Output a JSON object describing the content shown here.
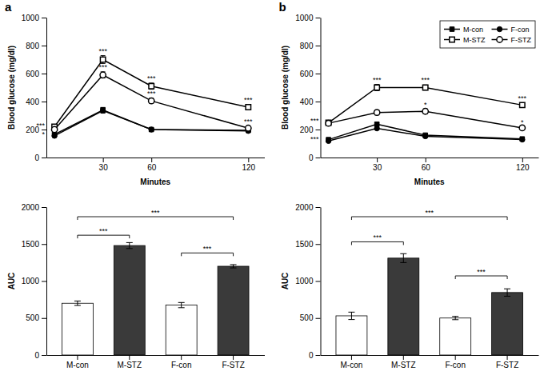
{
  "chart_data": [
    {
      "type": "line",
      "title": "a",
      "x_label": "Minutes",
      "y_label": "Blood glucose (mg/dl)",
      "x": [
        0,
        30,
        60,
        120
      ],
      "xlim": [
        -5,
        130
      ],
      "xticks": [
        30,
        60,
        120
      ],
      "ylim": [
        0,
        1000
      ],
      "yticks": [
        0,
        200,
        400,
        600,
        800,
        1000
      ],
      "series": [
        {
          "name": "M-con",
          "color": "#000000",
          "marker": "square",
          "values": [
            165,
            340,
            200,
            195
          ],
          "errors": [
            8,
            18,
            10,
            10
          ]
        },
        {
          "name": "M-STZ",
          "color": "#000000",
          "marker": "square-open",
          "values": [
            220,
            700,
            510,
            360
          ],
          "errors": [
            15,
            28,
            22,
            20
          ]
        },
        {
          "name": "F-con",
          "color": "#000000",
          "marker": "circle",
          "values": [
            155,
            335,
            200,
            190
          ],
          "errors": [
            8,
            18,
            10,
            8
          ]
        },
        {
          "name": "F-STZ",
          "color": "#000000",
          "marker": "circle-open",
          "values": [
            200,
            590,
            405,
            210
          ],
          "errors": [
            12,
            22,
            18,
            12
          ]
        }
      ],
      "annotations": [
        {
          "text": "***",
          "x": -6,
          "y": 230
        },
        {
          "text": "*",
          "x": -6,
          "y": 168
        },
        {
          "text": "***",
          "x": 30,
          "y": 742
        },
        {
          "text": "***",
          "x": 30,
          "y": 630
        },
        {
          "text": "***",
          "x": 60,
          "y": 548
        },
        {
          "text": "***",
          "x": 60,
          "y": 438
        },
        {
          "text": "***",
          "x": 120,
          "y": 392
        },
        {
          "text": "***",
          "x": 120,
          "y": 242
        }
      ]
    },
    {
      "type": "line",
      "title": "b",
      "x_label": "Minutes",
      "y_label": "Blood glucose (mg/dl)",
      "x": [
        0,
        30,
        60,
        120
      ],
      "xlim": [
        -5,
        130
      ],
      "xticks": [
        30,
        60,
        120
      ],
      "ylim": [
        0,
        1000
      ],
      "yticks": [
        0,
        200,
        400,
        600,
        800,
        1000
      ],
      "legend": "upper right",
      "series": [
        {
          "name": "M-con",
          "color": "#000000",
          "marker": "square",
          "values": [
            128,
            238,
            160,
            133
          ],
          "errors": [
            7,
            13,
            9,
            7
          ]
        },
        {
          "name": "M-STZ",
          "color": "#000000",
          "marker": "square-open",
          "values": [
            248,
            500,
            500,
            375
          ],
          "errors": [
            13,
            22,
            18,
            13
          ]
        },
        {
          "name": "F-con",
          "color": "#000000",
          "marker": "circle",
          "values": [
            118,
            208,
            152,
            128
          ],
          "errors": [
            7,
            10,
            7,
            7
          ]
        },
        {
          "name": "F-STZ",
          "color": "#000000",
          "marker": "circle-open",
          "values": [
            245,
            322,
            330,
            212
          ],
          "errors": [
            13,
            18,
            18,
            10
          ]
        }
      ],
      "annotations": [
        {
          "text": "***",
          "x": -6,
          "y": 262
        },
        {
          "text": "***",
          "x": -6,
          "y": 132
        },
        {
          "text": "***",
          "x": 30,
          "y": 535
        },
        {
          "text": "***",
          "x": 60,
          "y": 535
        },
        {
          "text": "*",
          "x": 60,
          "y": 358
        },
        {
          "text": "***",
          "x": 120,
          "y": 405
        },
        {
          "text": "*",
          "x": 120,
          "y": 236
        }
      ]
    },
    {
      "type": "bar",
      "y_label": "AUC",
      "categories": [
        "M-con",
        "M-STZ",
        "F-con",
        "F-STZ"
      ],
      "values": [
        700,
        1480,
        675,
        1200
      ],
      "errors": [
        30,
        40,
        35,
        22
      ],
      "colors": [
        "#ffffff",
        "#3a3a3a",
        "#ffffff",
        "#3a3a3a"
      ],
      "ylim": [
        0,
        2000
      ],
      "yticks": [
        0,
        500,
        1000,
        1500,
        2000
      ],
      "annotations": [
        {
          "text": "***",
          "from": "M-con",
          "to": "M-STZ",
          "y": 1620
        },
        {
          "text": "***",
          "from": "F-con",
          "to": "F-STZ",
          "y": 1380
        },
        {
          "text": "***",
          "from": "M-con",
          "to": "F-STZ",
          "y": 1870
        }
      ]
    },
    {
      "type": "bar",
      "y_label": "AUC",
      "categories": [
        "M-con",
        "M-STZ",
        "F-con",
        "F-STZ"
      ],
      "values": [
        530,
        1310,
        500,
        845
      ],
      "errors": [
        50,
        60,
        22,
        50
      ],
      "colors": [
        "#ffffff",
        "#3a3a3a",
        "#ffffff",
        "#3a3a3a"
      ],
      "ylim": [
        0,
        2000
      ],
      "yticks": [
        0,
        500,
        1000,
        1500,
        2000
      ],
      "annotations": [
        {
          "text": "***",
          "from": "M-con",
          "to": "M-STZ",
          "y": 1530
        },
        {
          "text": "***",
          "from": "F-con",
          "to": "F-STZ",
          "y": 1070
        },
        {
          "text": "***",
          "from": "M-con",
          "to": "F-STZ",
          "y": 1870
        }
      ]
    }
  ]
}
